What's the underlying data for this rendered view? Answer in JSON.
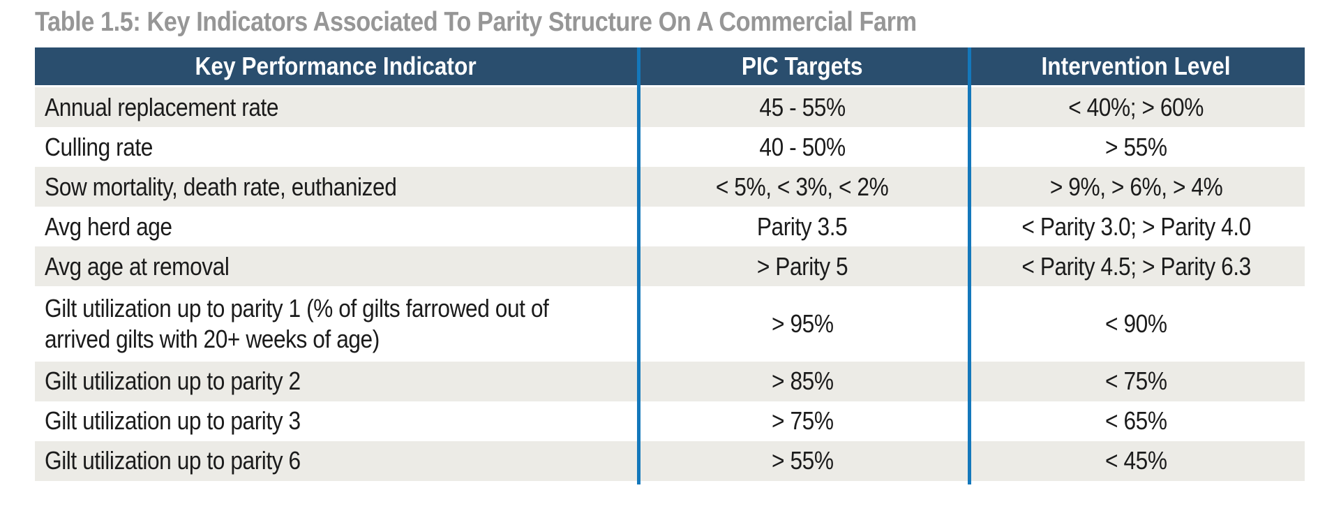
{
  "title": "Table 1.5: Key Indicators Associated To Parity Structure On A Commercial Farm",
  "colors": {
    "header_bg": "#2A4E6E",
    "separator_blue": "#1478BB",
    "alt_row_bg": "#ECEBE6",
    "title_gray": "#969696",
    "body_text": "#1B1B1B"
  },
  "table": {
    "headers": [
      "Key Performance Indicator",
      "PIC Targets",
      "Intervention Level"
    ],
    "rows": [
      {
        "kpi": "Annual replacement rate",
        "target": "45 - 55%",
        "intervention": "< 40%; > 60%"
      },
      {
        "kpi": "Culling rate",
        "target": "40 - 50%",
        "intervention": "> 55%"
      },
      {
        "kpi": "Sow mortality, death rate, euthanized",
        "target": "< 5%, < 3%, < 2%",
        "intervention": "> 9%, > 6%, > 4%"
      },
      {
        "kpi": "Avg herd age",
        "target": "Parity 3.5",
        "intervention": "< Parity 3.0; > Parity 4.0"
      },
      {
        "kpi": "Avg age at removal",
        "target": "> Parity 5",
        "intervention": "< Parity 4.5; > Parity 6.3"
      },
      {
        "kpi": "Gilt utilization up to parity 1 (% of gilts farrowed out of arrived gilts with 20+ weeks of age)",
        "target": "> 95%",
        "intervention": "< 90%"
      },
      {
        "kpi": "Gilt utilization up to parity 2",
        "target": "> 85%",
        "intervention": "< 75%"
      },
      {
        "kpi": "Gilt utilization up to parity 3",
        "target": "> 75%",
        "intervention": "< 65%"
      },
      {
        "kpi": "Gilt utilization up to parity 6",
        "target": "> 55%",
        "intervention": "< 45%"
      }
    ]
  }
}
